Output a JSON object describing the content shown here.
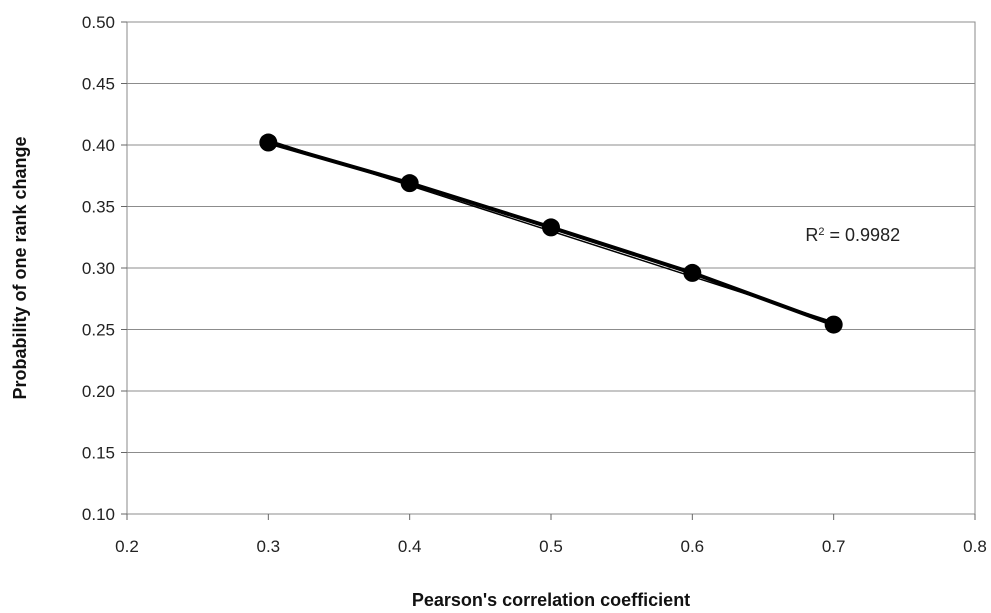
{
  "chart_data": {
    "type": "scatter",
    "title": "",
    "xlabel": "Pearson's correlation coefficient",
    "ylabel": "Probability of one rank change",
    "xlim": [
      0.2,
      0.8
    ],
    "ylim": [
      0.1,
      0.5
    ],
    "xticks": [
      "0.2",
      "0.3",
      "0.4",
      "0.5",
      "0.6",
      "0.7",
      "0.8"
    ],
    "yticks": [
      "0.10",
      "0.15",
      "0.20",
      "0.25",
      "0.30",
      "0.35",
      "0.40",
      "0.45",
      "0.50"
    ],
    "grid": "horizontal",
    "legend": "none",
    "series": [
      {
        "x": [
          0.3,
          0.4,
          0.5,
          0.6,
          0.7
        ],
        "y": [
          0.402,
          0.369,
          0.333,
          0.296,
          0.254
        ],
        "color": "#000000",
        "marker": "circle",
        "line": "solid"
      }
    ],
    "trendline": {
      "type": "linear",
      "x": [
        0.3,
        0.7
      ],
      "y": [
        0.404,
        0.256
      ],
      "color": "#000000"
    },
    "annotations": [
      {
        "text_prefix": "R",
        "superscript": "2",
        "text_suffix": " = 0.9982",
        "x": 0.68,
        "y": 0.322
      }
    ]
  }
}
